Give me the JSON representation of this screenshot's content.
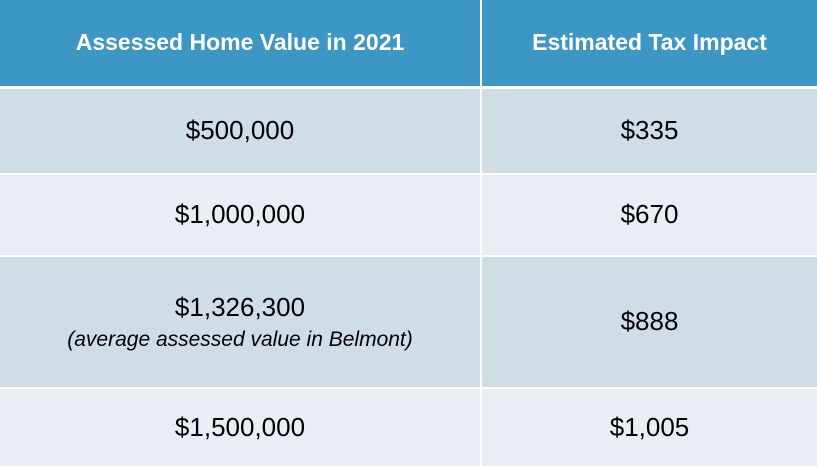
{
  "table": {
    "headers": {
      "home_value": "Assessed Home Value in 2021",
      "tax_impact": "Estimated Tax Impact"
    },
    "rows": [
      {
        "home_value": "$500,000",
        "note": "",
        "tax_impact": "$335"
      },
      {
        "home_value": "$1,000,000",
        "note": "",
        "tax_impact": "$670"
      },
      {
        "home_value": "$1,326,300",
        "note": "(average assessed value in Belmont)",
        "tax_impact": "$888"
      },
      {
        "home_value": "$1,500,000",
        "note": "",
        "tax_impact": "$1,005"
      }
    ],
    "colors": {
      "header_bg": "#3c97c4",
      "row_dark_bg": "#cfdde6",
      "row_light_bg": "#e8eef3"
    }
  }
}
